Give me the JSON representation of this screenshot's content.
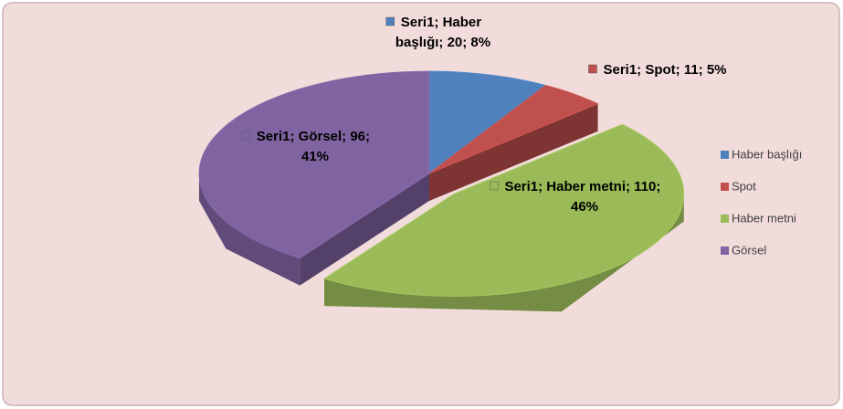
{
  "chart_data": {
    "type": "pie3d",
    "categories": [
      "Haber başlığı",
      "Spot",
      "Haber metni",
      "Görsel"
    ],
    "values": [
      20,
      11,
      110,
      96
    ],
    "value_labels": [
      "Seri1; Haber başlığı; 20; 8%",
      "Seri1; Spot; 11; 5%",
      "Seri1; Haber metni; 110; 46%",
      "Seri1; Görsel; 96; 41%"
    ],
    "colors": [
      "#4f81bd",
      "#c0504d",
      "#9bbb59",
      "#8064a2"
    ],
    "exploded": [
      false,
      false,
      true,
      false
    ],
    "legend": "right"
  }
}
